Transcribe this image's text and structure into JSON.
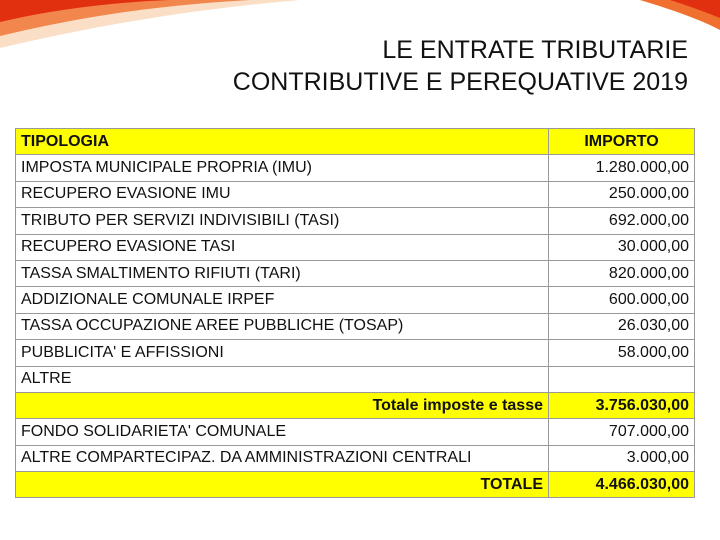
{
  "header": {
    "title_lines": [
      "LE ENTRATE TRIBUTARIE",
      "CONTRIBUTIVE E PEREQUATIVE 2019"
    ]
  },
  "table": {
    "columns": [
      "TIPOLOGIA",
      "IMPORTO"
    ],
    "rows": [
      {
        "label": "IMPOSTA MUNICIPALE PROPRIA (IMU)",
        "amount": "1.280.000,00"
      },
      {
        "label": "RECUPERO EVASIONE IMU",
        "amount": "250.000,00"
      },
      {
        "label": "TRIBUTO PER SERVIZI INDIVISIBILI (TASI)",
        "amount": "692.000,00"
      },
      {
        "label": "RECUPERO EVASIONE TASI",
        "amount": "30.000,00"
      },
      {
        "label": "TASSA SMALTIMENTO RIFIUTI (TARI)",
        "amount": "820.000,00"
      },
      {
        "label": "ADDIZIONALE COMUNALE IRPEF",
        "amount": "600.000,00"
      },
      {
        "label": "TASSA OCCUPAZIONE AREE PUBBLICHE (TOSAP)",
        "amount": "26.030,00"
      },
      {
        "label": "PUBBLICITA' E AFFISSIONI",
        "amount": "58.000,00"
      },
      {
        "label": "ALTRE"
      },
      {
        "label": "Totale imposte e tasse",
        "amount": "3.756.030,00",
        "total": true
      },
      {
        "label": "FONDO SOLIDARIETA' COMUNALE",
        "amount": "707.000,00"
      },
      {
        "label": "ALTRE COMPARTECIPAZ. DA AMMINISTRAZIONI CENTRALI",
        "amount": "3.000,00"
      },
      {
        "label": "TOTALE",
        "amount": "4.466.030,00",
        "total": true
      }
    ]
  }
}
